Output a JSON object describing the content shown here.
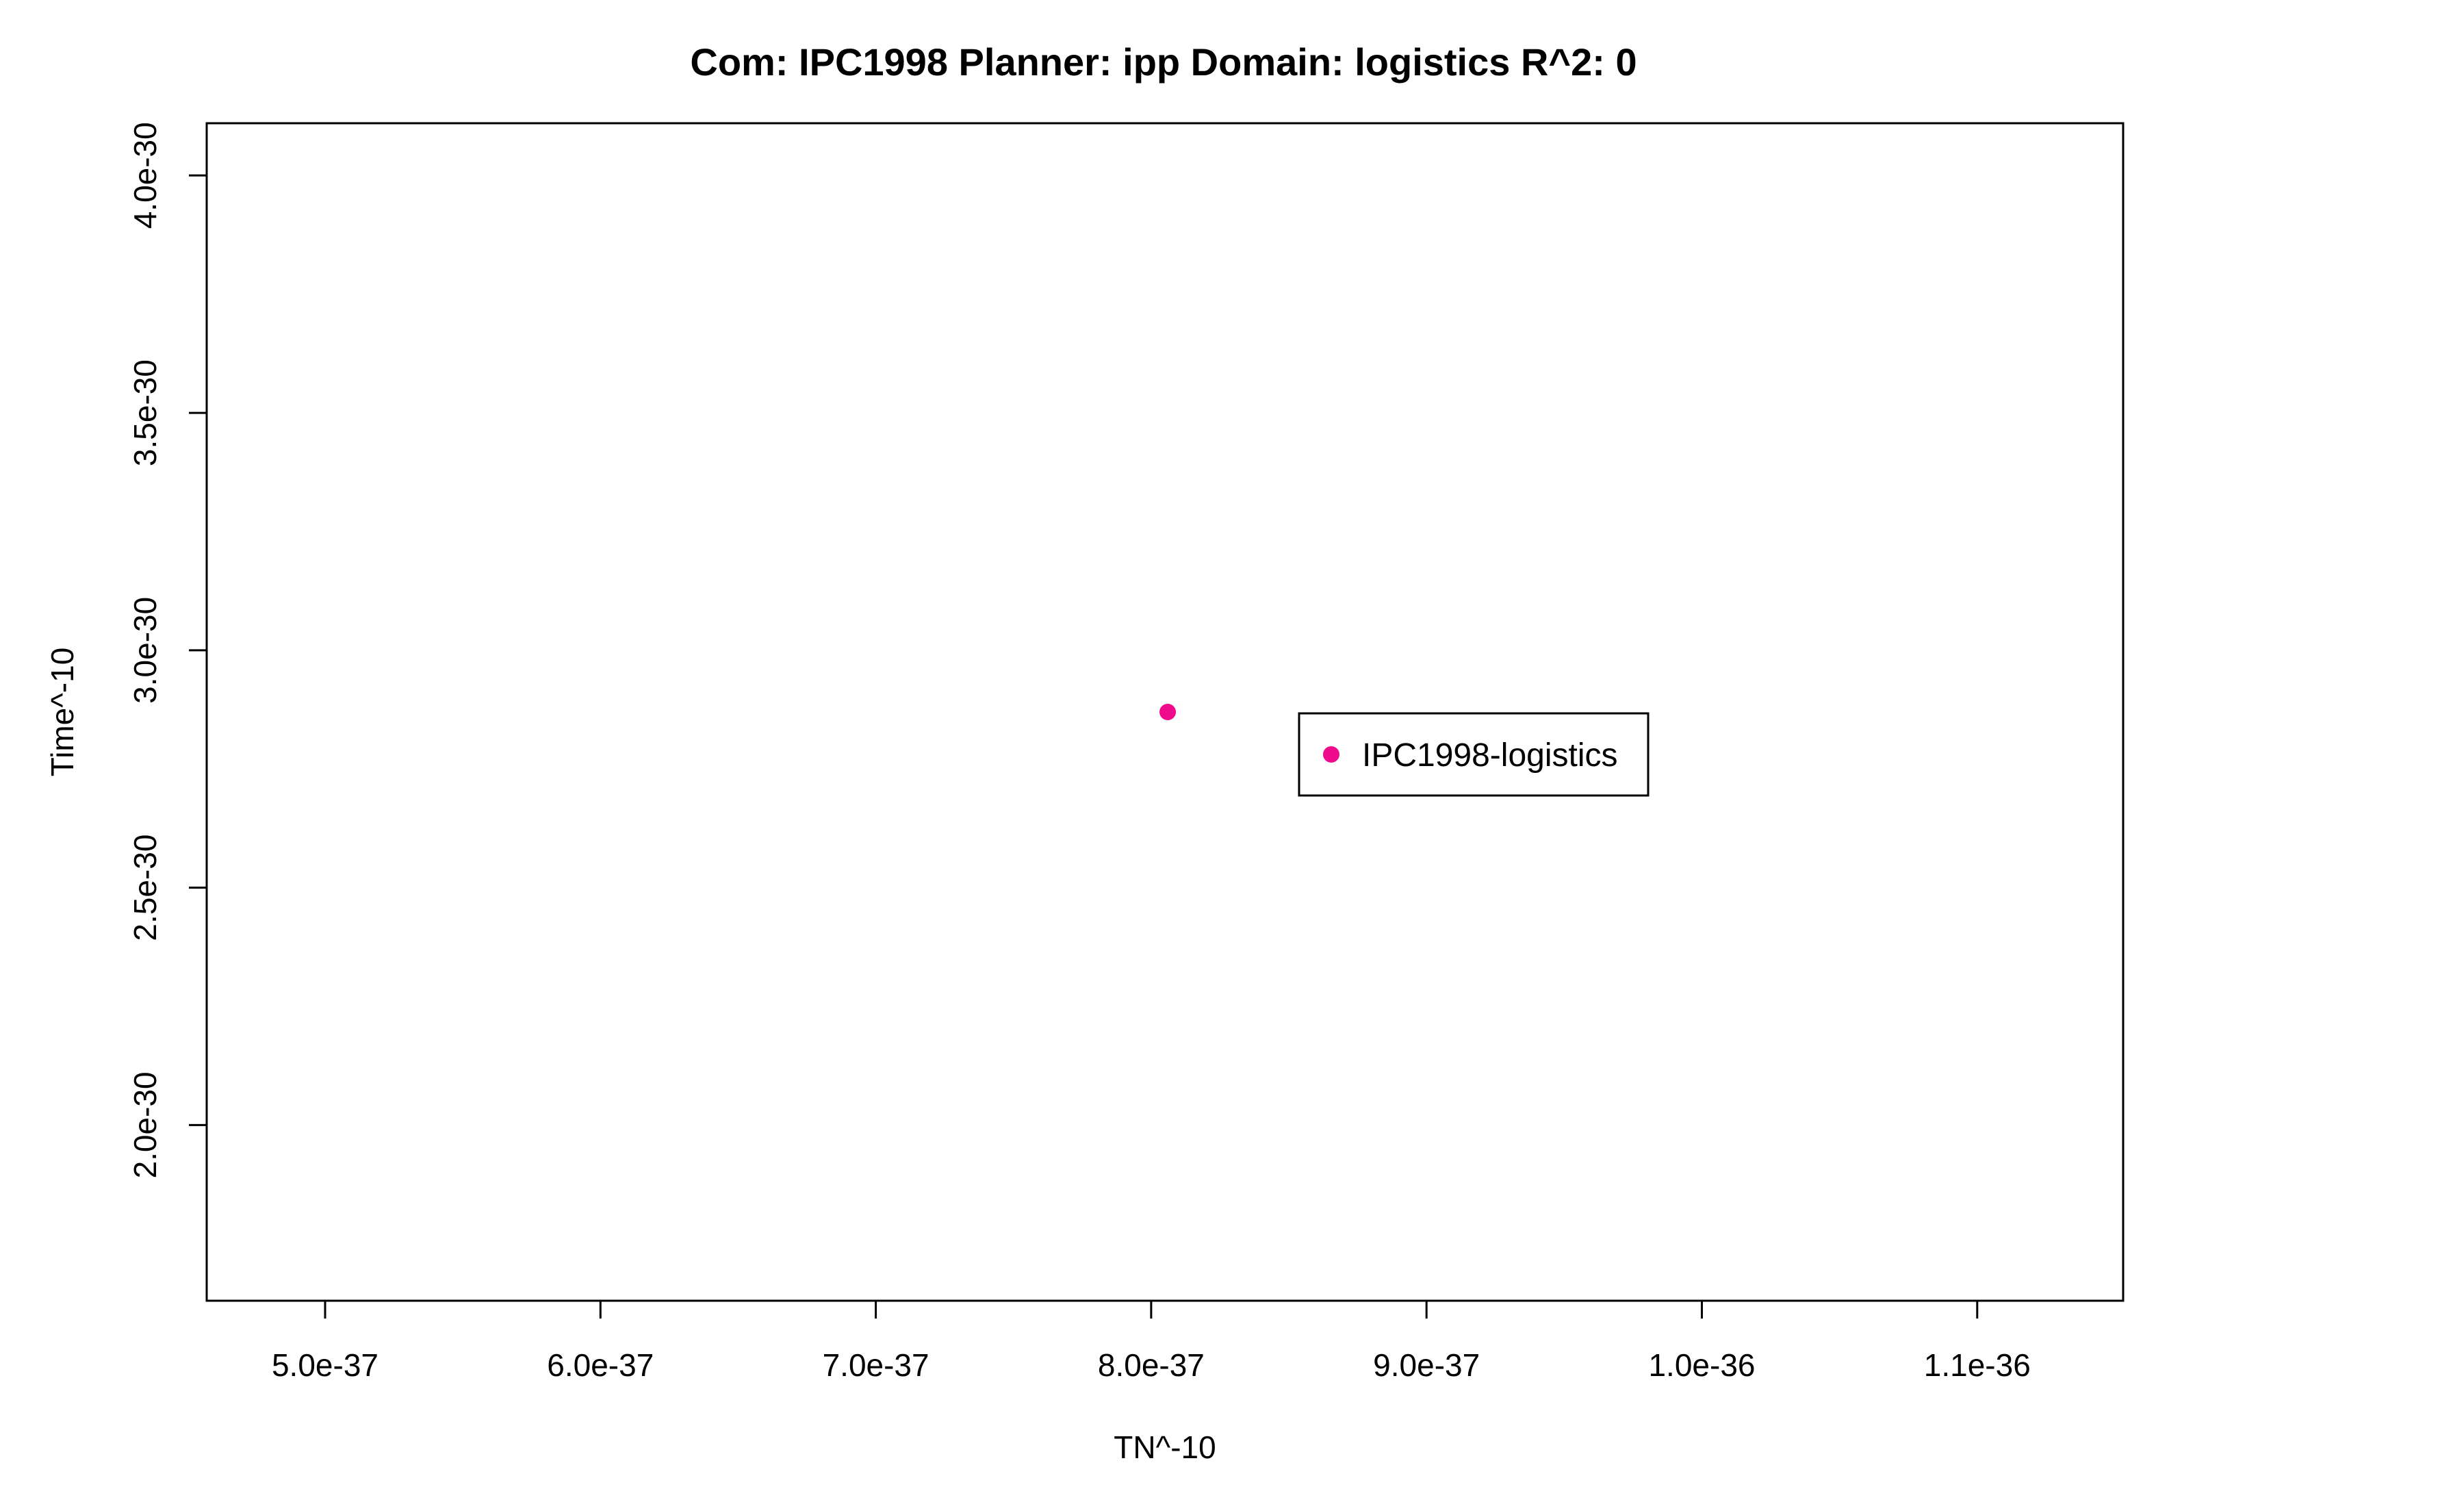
{
  "chart_data": {
    "type": "scatter",
    "title": "Com: IPC1998 Planner: ipp Domain: logistics R^2: 0",
    "xlabel": "TN^-10",
    "ylabel": "Time^-10",
    "xlim": [
      4.57e-37,
      1.153e-36
    ],
    "ylim": [
      1.63e-30,
      4.11e-30
    ],
    "xticks": [
      5e-37,
      6e-37,
      7e-37,
      8e-37,
      9e-37,
      1e-36,
      1.1e-36
    ],
    "xtick_labels": [
      "5.0e-37",
      "6.0e-37",
      "7.0e-37",
      "8.0e-37",
      "9.0e-37",
      "1.0e-36",
      "1.1e-36"
    ],
    "yticks": [
      2e-30,
      2.5e-30,
      3e-30,
      3.5e-30,
      4e-30
    ],
    "ytick_labels": [
      "2.0e-30",
      "2.5e-30",
      "3.0e-30",
      "3.5e-30",
      "4.0e-30"
    ],
    "series": [
      {
        "name": "IPC1998-logistics",
        "color": "#ee0c8c",
        "points": [
          {
            "x": 8.06e-37,
            "y": 2.87e-30
          }
        ]
      }
    ],
    "legend": {
      "position": "right-center",
      "entries": [
        "IPC1998-logistics"
      ]
    },
    "grid": false
  }
}
